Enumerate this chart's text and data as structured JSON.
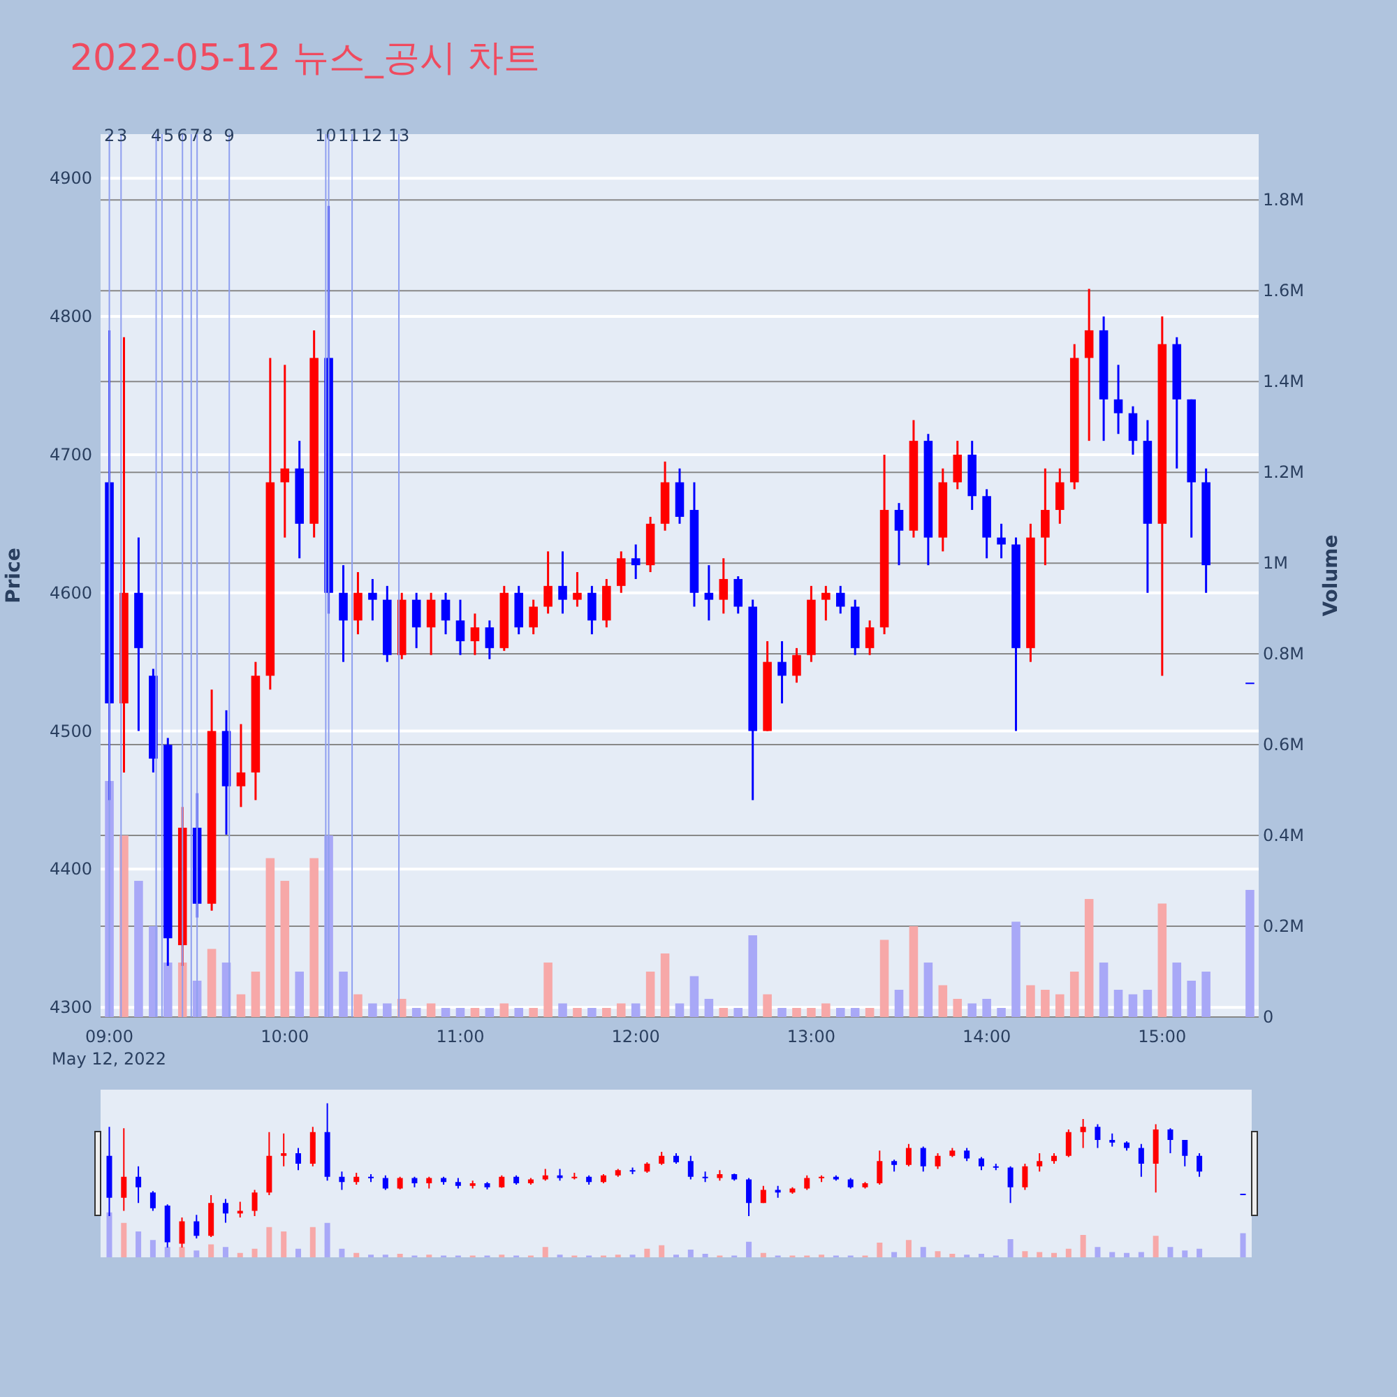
{
  "chart_data": {
    "type": "candlestick",
    "title": "2022-05-12 뉴스_공시 차트",
    "ylabel": "Price",
    "y2label": "Volume",
    "grid": true,
    "x": [
      "2022-05-12T09:00",
      "2022-05-12T09:05",
      "2022-05-12T09:10",
      "2022-05-12T09:15",
      "2022-05-12T09:20",
      "2022-05-12T09:25",
      "2022-05-12T09:30",
      "2022-05-12T09:35",
      "2022-05-12T09:40",
      "2022-05-12T09:45",
      "2022-05-12T09:50",
      "2022-05-12T09:55",
      "2022-05-12T10:00",
      "2022-05-12T10:05",
      "2022-05-12T10:10",
      "2022-05-12T10:15",
      "2022-05-12T10:20",
      "2022-05-12T10:25",
      "2022-05-12T10:30",
      "2022-05-12T10:35",
      "2022-05-12T10:40",
      "2022-05-12T10:45",
      "2022-05-12T10:50",
      "2022-05-12T10:55",
      "2022-05-12T11:00",
      "2022-05-12T11:05",
      "2022-05-12T11:10",
      "2022-05-12T11:15",
      "2022-05-12T11:20",
      "2022-05-12T11:25",
      "2022-05-12T11:30",
      "2022-05-12T11:35",
      "2022-05-12T11:40",
      "2022-05-12T11:45",
      "2022-05-12T11:50",
      "2022-05-12T11:55",
      "2022-05-12T12:00",
      "2022-05-12T12:05",
      "2022-05-12T12:10",
      "2022-05-12T12:15",
      "2022-05-12T12:20",
      "2022-05-12T12:25",
      "2022-05-12T12:30",
      "2022-05-12T12:35",
      "2022-05-12T12:40",
      "2022-05-12T12:45",
      "2022-05-12T12:50",
      "2022-05-12T12:55",
      "2022-05-12T13:00",
      "2022-05-12T13:05",
      "2022-05-12T13:10",
      "2022-05-12T13:15",
      "2022-05-12T13:20",
      "2022-05-12T13:25",
      "2022-05-12T13:30",
      "2022-05-12T13:35",
      "2022-05-12T13:40",
      "2022-05-12T13:45",
      "2022-05-12T13:50",
      "2022-05-12T13:55",
      "2022-05-12T14:00",
      "2022-05-12T14:05",
      "2022-05-12T14:10",
      "2022-05-12T14:15",
      "2022-05-12T14:20",
      "2022-05-12T14:25",
      "2022-05-12T14:30",
      "2022-05-12T14:35",
      "2022-05-12T14:40",
      "2022-05-12T14:45",
      "2022-05-12T14:50",
      "2022-05-12T14:55",
      "2022-05-12T15:00",
      "2022-05-12T15:05",
      "2022-05-12T15:10",
      "2022-05-12T15:15",
      "2022-05-12T15:30"
    ],
    "ohlc": [
      [
        4680,
        4790,
        4450,
        4520
      ],
      [
        4520,
        4785,
        4470,
        4600
      ],
      [
        4600,
        4640,
        4500,
        4560
      ],
      [
        4540,
        4545,
        4470,
        4480
      ],
      [
        4490,
        4495,
        4330,
        4350
      ],
      [
        4345,
        4445,
        4330,
        4430
      ],
      [
        4430,
        4455,
        4365,
        4375
      ],
      [
        4375,
        4530,
        4370,
        4500
      ],
      [
        4500,
        4515,
        4425,
        4460
      ],
      [
        4460,
        4505,
        4445,
        4470
      ],
      [
        4470,
        4550,
        4450,
        4540
      ],
      [
        4540,
        4770,
        4530,
        4680
      ],
      [
        4680,
        4765,
        4640,
        4690
      ],
      [
        4690,
        4710,
        4625,
        4650
      ],
      [
        4650,
        4790,
        4640,
        4770
      ],
      [
        4770,
        4880,
        4585,
        4600
      ],
      [
        4600,
        4620,
        4550,
        4580
      ],
      [
        4580,
        4615,
        4570,
        4600
      ],
      [
        4600,
        4610,
        4580,
        4595
      ],
      [
        4595,
        4605,
        4550,
        4555
      ],
      [
        4555,
        4600,
        4552,
        4595
      ],
      [
        4595,
        4600,
        4560,
        4575
      ],
      [
        4575,
        4600,
        4555,
        4595
      ],
      [
        4595,
        4600,
        4570,
        4580
      ],
      [
        4580,
        4595,
        4555,
        4565
      ],
      [
        4565,
        4585,
        4555,
        4575
      ],
      [
        4575,
        4580,
        4552,
        4560
      ],
      [
        4560,
        4605,
        4558,
        4600
      ],
      [
        4600,
        4605,
        4570,
        4575
      ],
      [
        4575,
        4595,
        4570,
        4590
      ],
      [
        4590,
        4630,
        4585,
        4605
      ],
      [
        4605,
        4630,
        4585,
        4595
      ],
      [
        4595,
        4615,
        4590,
        4600
      ],
      [
        4600,
        4605,
        4570,
        4580
      ],
      [
        4580,
        4610,
        4575,
        4605
      ],
      [
        4605,
        4630,
        4600,
        4625
      ],
      [
        4625,
        4635,
        4610,
        4620
      ],
      [
        4620,
        4655,
        4615,
        4650
      ],
      [
        4650,
        4695,
        4645,
        4680
      ],
      [
        4680,
        4690,
        4650,
        4655
      ],
      [
        4660,
        4680,
        4590,
        4600
      ],
      [
        4600,
        4620,
        4580,
        4595
      ],
      [
        4595,
        4625,
        4585,
        4610
      ],
      [
        4610,
        4612,
        4585,
        4590
      ],
      [
        4590,
        4595,
        4450,
        4500
      ],
      [
        4500,
        4565,
        4500,
        4550
      ],
      [
        4550,
        4565,
        4520,
        4540
      ],
      [
        4540,
        4560,
        4535,
        4555
      ],
      [
        4555,
        4605,
        4550,
        4595
      ],
      [
        4595,
        4605,
        4580,
        4600
      ],
      [
        4600,
        4605,
        4585,
        4590
      ],
      [
        4590,
        4595,
        4555,
        4560
      ],
      [
        4560,
        4580,
        4555,
        4575
      ],
      [
        4575,
        4700,
        4570,
        4660
      ],
      [
        4660,
        4665,
        4620,
        4645
      ],
      [
        4645,
        4725,
        4640,
        4710
      ],
      [
        4710,
        4715,
        4620,
        4640
      ],
      [
        4640,
        4690,
        4630,
        4680
      ],
      [
        4680,
        4710,
        4675,
        4700
      ],
      [
        4700,
        4710,
        4660,
        4670
      ],
      [
        4670,
        4675,
        4625,
        4640
      ],
      [
        4640,
        4650,
        4625,
        4635
      ],
      [
        4635,
        4640,
        4500,
        4560
      ],
      [
        4560,
        4650,
        4550,
        4640
      ],
      [
        4640,
        4690,
        4620,
        4660
      ],
      [
        4660,
        4690,
        4650,
        4680
      ],
      [
        4680,
        4780,
        4675,
        4770
      ],
      [
        4770,
        4820,
        4710,
        4790
      ],
      [
        4790,
        4800,
        4710,
        4740
      ],
      [
        4740,
        4765,
        4715,
        4730
      ],
      [
        4730,
        4735,
        4700,
        4710
      ],
      [
        4710,
        4725,
        4600,
        4650
      ],
      [
        4650,
        4800,
        4540,
        4780
      ],
      [
        4780,
        4785,
        4690,
        4740
      ],
      [
        4740,
        4740,
        4640,
        4680
      ],
      [
        4680,
        4690,
        4600,
        4620
      ],
      [
        4535,
        4535,
        4535,
        4535
      ]
    ],
    "colors": [
      "#0000ff",
      "#ff0000",
      "#0000ff",
      "#0000ff",
      "#0000ff",
      "#ff0000",
      "#0000ff",
      "#ff0000",
      "#0000ff",
      "#ff0000",
      "#ff0000",
      "#ff0000",
      "#ff0000",
      "#0000ff",
      "#ff0000",
      "#0000ff",
      "#0000ff",
      "#ff0000",
      "#0000ff",
      "#0000ff",
      "#ff0000",
      "#0000ff",
      "#ff0000",
      "#0000ff",
      "#0000ff",
      "#ff0000",
      "#0000ff",
      "#ff0000",
      "#0000ff",
      "#ff0000",
      "#ff0000",
      "#0000ff",
      "#ff0000",
      "#0000ff",
      "#ff0000",
      "#ff0000",
      "#0000ff",
      "#ff0000",
      "#ff0000",
      "#0000ff",
      "#0000ff",
      "#0000ff",
      "#ff0000",
      "#0000ff",
      "#0000ff",
      "#ff0000",
      "#0000ff",
      "#ff0000",
      "#ff0000",
      "#ff0000",
      "#0000ff",
      "#0000ff",
      "#ff0000",
      "#ff0000",
      "#0000ff",
      "#ff0000",
      "#0000ff",
      "#ff0000",
      "#ff0000",
      "#0000ff",
      "#0000ff",
      "#0000ff",
      "#0000ff",
      "#ff0000",
      "#ff0000",
      "#ff0000",
      "#ff0000",
      "#ff0000",
      "#0000ff",
      "#0000ff",
      "#0000ff",
      "#0000ff",
      "#ff0000",
      "#0000ff",
      "#0000ff",
      "#0000ff",
      "#0000ff"
    ],
    "series": [
      {
        "type": "bar",
        "axis": "y2",
        "values": [
          520000,
          400000,
          300000,
          200000,
          120000,
          120000,
          80000,
          150000,
          120000,
          50000,
          100000,
          350000,
          300000,
          100000,
          350000,
          400000,
          100000,
          50000,
          30000,
          30000,
          40000,
          20000,
          30000,
          20000,
          20000,
          20000,
          20000,
          30000,
          20000,
          20000,
          120000,
          30000,
          20000,
          20000,
          20000,
          30000,
          30000,
          100000,
          140000,
          30000,
          90000,
          40000,
          20000,
          20000,
          180000,
          50000,
          20000,
          20000,
          20000,
          30000,
          20000,
          20000,
          20000,
          170000,
          60000,
          200000,
          120000,
          70000,
          40000,
          30000,
          40000,
          20000,
          210000,
          70000,
          60000,
          50000,
          100000,
          260000,
          120000,
          60000,
          50000,
          60000,
          250000,
          120000,
          80000,
          100000,
          280000
        ],
        "colors": [
          "#a8a8f7",
          "#f7a8a8",
          "#a8a8f7",
          "#a8a8f7",
          "#a8a8f7",
          "#f7a8a8",
          "#a8a8f7",
          "#f7a8a8",
          "#a8a8f7",
          "#f7a8a8",
          "#f7a8a8",
          "#f7a8a8",
          "#f7a8a8",
          "#a8a8f7",
          "#f7a8a8",
          "#a8a8f7",
          "#a8a8f7",
          "#f7a8a8",
          "#a8a8f7",
          "#a8a8f7",
          "#f7a8a8",
          "#a8a8f7",
          "#f7a8a8",
          "#a8a8f7",
          "#a8a8f7",
          "#f7a8a8",
          "#a8a8f7",
          "#f7a8a8",
          "#a8a8f7",
          "#f7a8a8",
          "#f7a8a8",
          "#a8a8f7",
          "#f7a8a8",
          "#a8a8f7",
          "#f7a8a8",
          "#f7a8a8",
          "#a8a8f7",
          "#f7a8a8",
          "#f7a8a8",
          "#a8a8f7",
          "#a8a8f7",
          "#a8a8f7",
          "#f7a8a8",
          "#a8a8f7",
          "#a8a8f7",
          "#f7a8a8",
          "#a8a8f7",
          "#f7a8a8",
          "#f7a8a8",
          "#f7a8a8",
          "#a8a8f7",
          "#a8a8f7",
          "#f7a8a8",
          "#f7a8a8",
          "#a8a8f7",
          "#f7a8a8",
          "#a8a8f7",
          "#f7a8a8",
          "#f7a8a8",
          "#a8a8f7",
          "#a8a8f7",
          "#a8a8f7",
          "#a8a8f7",
          "#f7a8a8",
          "#f7a8a8",
          "#f7a8a8",
          "#f7a8a8",
          "#f7a8a8",
          "#a8a8f7",
          "#a8a8f7",
          "#a8a8f7",
          "#a8a8f7",
          "#f7a8a8",
          "#a8a8f7",
          "#a8a8f7",
          "#a8a8f7",
          "#a8a8f7"
        ]
      }
    ],
    "xlim": [
      "2022-05-12T08:57",
      "2022-05-12T15:33"
    ],
    "xticks": [
      {
        "value": "2022-05-12T09:00",
        "label": "09:00"
      },
      {
        "value": "2022-05-12T10:00",
        "label": "10:00"
      },
      {
        "value": "2022-05-12T11:00",
        "label": "11:00"
      },
      {
        "value": "2022-05-12T12:00",
        "label": "12:00"
      },
      {
        "value": "2022-05-12T13:00",
        "label": "13:00"
      },
      {
        "value": "2022-05-12T14:00",
        "label": "14:00"
      },
      {
        "value": "2022-05-12T15:00",
        "label": "15:00"
      }
    ],
    "ylim": [
      4293,
      4932
    ],
    "yticks": [
      4300,
      4400,
      4500,
      4600,
      4700,
      4800,
      4900
    ],
    "y2lim": [
      0,
      1945000
    ],
    "y2ticks": [
      0,
      {
        "value": 200000,
        "label": "0.2M"
      },
      {
        "value": 400000,
        "label": "0.4M"
      },
      {
        "value": 600000,
        "label": "0.6M"
      },
      {
        "value": 800000,
        "label": "0.8M"
      },
      {
        "value": 1000000,
        "label": "1M"
      },
      {
        "value": 1200000,
        "label": "1.2M"
      },
      {
        "value": 1400000,
        "label": "1.4M"
      },
      {
        "value": 1600000,
        "label": "1.6M"
      },
      {
        "value": 1800000,
        "label": "1.8M"
      }
    ],
    "ref_lines": [
      {
        "axis": "x",
        "value": "2022-05-12T09:00",
        "label": "2",
        "color": "#8f9ff0"
      },
      {
        "axis": "x",
        "value": "2022-05-12T09:04",
        "label": "3",
        "color": "#8f9ff0"
      },
      {
        "axis": "x",
        "value": "2022-05-12T09:16",
        "label": "4",
        "color": "#8f9ff0"
      },
      {
        "axis": "x",
        "value": "2022-05-12T09:18",
        "label": "5",
        "color": "#8f9ff0"
      },
      {
        "axis": "x",
        "value": "2022-05-12T09:25",
        "label": "6",
        "color": "#8f9ff0"
      },
      {
        "axis": "x",
        "value": "2022-05-12T09:28",
        "label": "7",
        "color": "#8f9ff0"
      },
      {
        "axis": "x",
        "value": "2022-05-12T09:30",
        "label": "8",
        "color": "#8f9ff0"
      },
      {
        "axis": "x",
        "value": "2022-05-12T09:41",
        "label": "9",
        "color": "#8f9ff0"
      },
      {
        "axis": "x",
        "value": "2022-05-12T10:14",
        "label": "10",
        "color": "#8f9ff0"
      },
      {
        "axis": "x",
        "value": "2022-05-12T10:15",
        "label": "11",
        "color": "#8f9ff0"
      },
      {
        "axis": "x",
        "value": "2022-05-12T10:23",
        "label": "12",
        "color": "#8f9ff0"
      },
      {
        "axis": "x",
        "value": "2022-05-12T10:39",
        "label": "13",
        "color": "#8f9ff0"
      }
    ],
    "annotations": [
      "May 12, 2022"
    ]
  }
}
